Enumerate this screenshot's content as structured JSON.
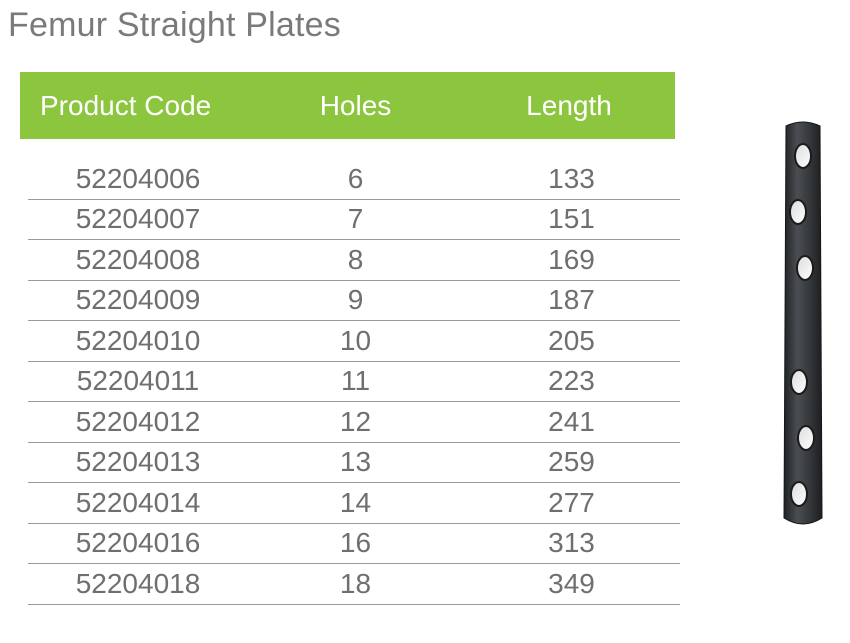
{
  "page": {
    "title": "Femur Straight Plates"
  },
  "table": {
    "headers": {
      "product_code": "Product Code",
      "holes": "Holes",
      "length": "Length"
    },
    "rows": [
      {
        "product_code": "52204006",
        "holes": "6",
        "length": "133"
      },
      {
        "product_code": "52204007",
        "holes": "7",
        "length": "151"
      },
      {
        "product_code": "52204008",
        "holes": "8",
        "length": "169"
      },
      {
        "product_code": "52204009",
        "holes": "9",
        "length": "187"
      },
      {
        "product_code": "52204010",
        "holes": "10",
        "length": "205"
      },
      {
        "product_code": "52204011",
        "holes": "11",
        "length": "223"
      },
      {
        "product_code": "52204012",
        "holes": "12",
        "length": "241"
      },
      {
        "product_code": "52204013",
        "holes": "13",
        "length": "259"
      },
      {
        "product_code": "52204014",
        "holes": "14",
        "length": "277"
      },
      {
        "product_code": "52204016",
        "holes": "16",
        "length": "313"
      },
      {
        "product_code": "52204018",
        "holes": "18",
        "length": "349"
      }
    ]
  },
  "colors": {
    "header_bg": "#8cc63f",
    "header_text": "#ffffff",
    "title_text": "#7a7a7a",
    "cell_text": "#6f6f6f",
    "plate_color": "#3a3d40"
  },
  "image": {
    "icon": "bone-plate-icon"
  }
}
